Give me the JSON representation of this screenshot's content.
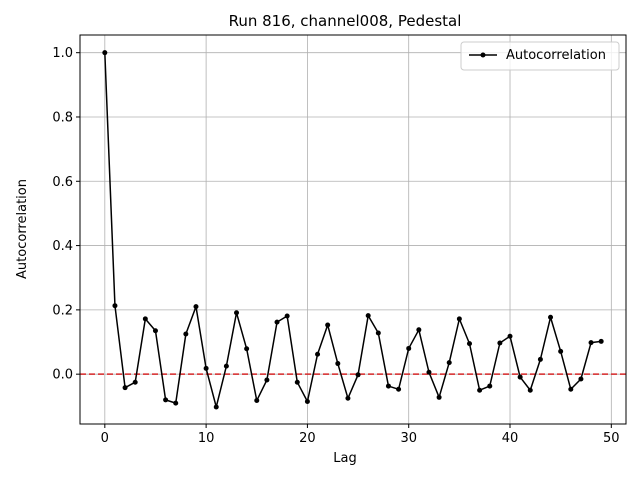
{
  "chart_data": {
    "type": "line",
    "title": "Run 816, channel008, Pedestal",
    "xlabel": "Lag",
    "ylabel": "Autocorrelation",
    "xlim": [
      -2.45,
      51.45
    ],
    "ylim": [
      -0.155,
      1.055
    ],
    "xticks": [
      0,
      10,
      20,
      30,
      40,
      50
    ],
    "yticks": [
      0.0,
      0.2,
      0.4,
      0.6,
      0.8,
      1.0
    ],
    "xtick_labels": [
      "0",
      "10",
      "20",
      "30",
      "40",
      "50"
    ],
    "ytick_labels": [
      "0.0",
      "0.2",
      "0.4",
      "0.6",
      "0.8",
      "1.0"
    ],
    "grid": true,
    "legend_position": "upper right",
    "reference_line": {
      "y": 0,
      "color": "#d62728",
      "style": "dashed"
    },
    "series": [
      {
        "name": "Autocorrelation",
        "color": "#000000",
        "marker": "point",
        "x": [
          0,
          1,
          2,
          3,
          4,
          5,
          6,
          7,
          8,
          9,
          10,
          11,
          12,
          13,
          14,
          15,
          16,
          17,
          18,
          19,
          20,
          21,
          22,
          23,
          24,
          25,
          26,
          27,
          28,
          29,
          30,
          31,
          32,
          33,
          34,
          35,
          36,
          37,
          38,
          39,
          40,
          41,
          42,
          43,
          44,
          45,
          46,
          47,
          48,
          49
        ],
        "values": [
          1.0,
          0.213,
          -0.042,
          -0.025,
          0.172,
          0.135,
          -0.08,
          -0.09,
          0.125,
          0.21,
          0.018,
          -0.102,
          0.025,
          0.191,
          0.079,
          -0.082,
          -0.018,
          0.162,
          0.181,
          -0.025,
          -0.085,
          0.062,
          0.153,
          0.033,
          -0.075,
          -0.002,
          0.182,
          0.128,
          -0.037,
          -0.047,
          0.08,
          0.138,
          0.006,
          -0.072,
          0.036,
          0.172,
          0.095,
          -0.05,
          -0.037,
          0.097,
          0.118,
          -0.009,
          -0.05,
          0.046,
          0.177,
          0.071,
          -0.047,
          -0.015,
          0.098,
          0.102
        ]
      }
    ]
  }
}
